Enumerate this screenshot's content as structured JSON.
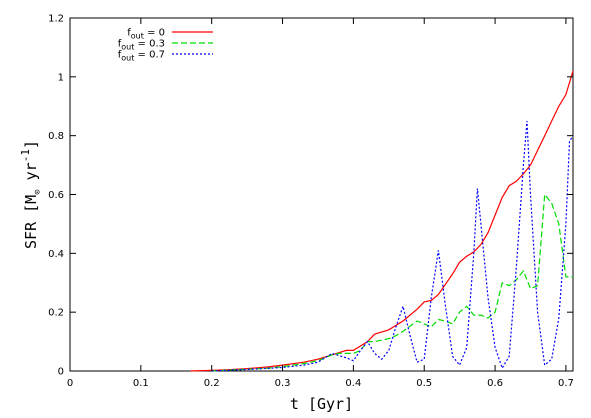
{
  "chart_data": {
    "type": "line",
    "xlabel": "t [Gyr]",
    "ylabel": "SFR [M",
    "ylabel_unit_rest": "yr",
    "ylabel_sup": "-1",
    "ylabel_close": "]",
    "ylabel_sub": "⊙",
    "xlim": [
      0,
      0.71
    ],
    "ylim": [
      0,
      1.2
    ],
    "x_ticks": [
      0,
      0.1,
      0.2,
      0.3,
      0.4,
      0.5,
      0.6,
      0.7
    ],
    "x_tick_labels": [
      "0",
      "0.1",
      "0.2",
      "0.3",
      "0.4",
      "0.5",
      "0.6",
      "0.7"
    ],
    "y_ticks": [
      0,
      0.2,
      0.4,
      0.6,
      0.8,
      1.0,
      1.2
    ],
    "y_tick_labels": [
      "0",
      "0.2",
      "0.4",
      "0.6",
      "0.8",
      "1",
      "1.2"
    ],
    "grid": false,
    "legend_position": "top-left",
    "series": [
      {
        "name": "f_out = 0",
        "legend": {
          "base": "f",
          "sub": "out",
          "rest": " = 0"
        },
        "color": "#ff0000",
        "dash": "solid",
        "x": [
          0.17,
          0.2,
          0.22,
          0.25,
          0.28,
          0.3,
          0.33,
          0.35,
          0.37,
          0.39,
          0.4,
          0.42,
          0.43,
          0.45,
          0.47,
          0.49,
          0.5,
          0.51,
          0.52,
          0.53,
          0.54,
          0.55,
          0.56,
          0.57,
          0.58,
          0.59,
          0.6,
          0.61,
          0.62,
          0.63,
          0.64,
          0.65,
          0.66,
          0.67,
          0.68,
          0.69,
          0.7,
          0.71
        ],
        "y": [
          0.0,
          0.002,
          0.004,
          0.008,
          0.014,
          0.02,
          0.03,
          0.04,
          0.055,
          0.07,
          0.07,
          0.1,
          0.125,
          0.14,
          0.17,
          0.21,
          0.235,
          0.24,
          0.26,
          0.295,
          0.33,
          0.37,
          0.39,
          0.405,
          0.43,
          0.47,
          0.53,
          0.59,
          0.63,
          0.645,
          0.67,
          0.7,
          0.75,
          0.8,
          0.85,
          0.9,
          0.94,
          1.02
        ]
      },
      {
        "name": "f_out = 0.3",
        "legend": {
          "base": "f",
          "sub": "out",
          "rest": " = 0.3"
        },
        "color": "#00dd00",
        "dash": "6,3",
        "x": [
          0.2,
          0.25,
          0.28,
          0.3,
          0.33,
          0.35,
          0.37,
          0.38,
          0.4,
          0.41,
          0.42,
          0.43,
          0.45,
          0.46,
          0.47,
          0.49,
          0.5,
          0.51,
          0.52,
          0.53,
          0.54,
          0.55,
          0.56,
          0.57,
          0.58,
          0.59,
          0.6,
          0.61,
          0.62,
          0.63,
          0.64,
          0.65,
          0.66,
          0.67,
          0.68,
          0.69,
          0.7,
          0.71
        ],
        "y": [
          0.0,
          0.006,
          0.01,
          0.015,
          0.025,
          0.035,
          0.055,
          0.06,
          0.06,
          0.07,
          0.1,
          0.1,
          0.11,
          0.12,
          0.135,
          0.17,
          0.16,
          0.15,
          0.175,
          0.17,
          0.16,
          0.2,
          0.22,
          0.19,
          0.19,
          0.18,
          0.2,
          0.3,
          0.29,
          0.31,
          0.34,
          0.28,
          0.29,
          0.6,
          0.57,
          0.5,
          0.32,
          0.32
        ]
      },
      {
        "name": "f_out = 0.7",
        "legend": {
          "base": "f",
          "sub": "out",
          "rest": " = 0.7"
        },
        "color": "#0000ff",
        "dash": "2,2",
        "x": [
          0.2,
          0.25,
          0.3,
          0.33,
          0.35,
          0.37,
          0.39,
          0.4,
          0.41,
          0.42,
          0.43,
          0.44,
          0.45,
          0.46,
          0.47,
          0.48,
          0.49,
          0.5,
          0.51,
          0.52,
          0.53,
          0.54,
          0.55,
          0.56,
          0.57,
          0.575,
          0.58,
          0.59,
          0.6,
          0.61,
          0.62,
          0.63,
          0.64,
          0.645,
          0.65,
          0.66,
          0.67,
          0.68,
          0.69,
          0.7,
          0.705,
          0.71
        ],
        "y": [
          0.0,
          0.005,
          0.012,
          0.02,
          0.03,
          0.06,
          0.045,
          0.035,
          0.07,
          0.1,
          0.06,
          0.04,
          0.07,
          0.15,
          0.22,
          0.12,
          0.03,
          0.04,
          0.25,
          0.41,
          0.22,
          0.05,
          0.02,
          0.08,
          0.4,
          0.62,
          0.5,
          0.25,
          0.08,
          0.01,
          0.05,
          0.35,
          0.7,
          0.85,
          0.6,
          0.2,
          0.02,
          0.04,
          0.18,
          0.5,
          0.78,
          0.8
        ]
      }
    ]
  }
}
